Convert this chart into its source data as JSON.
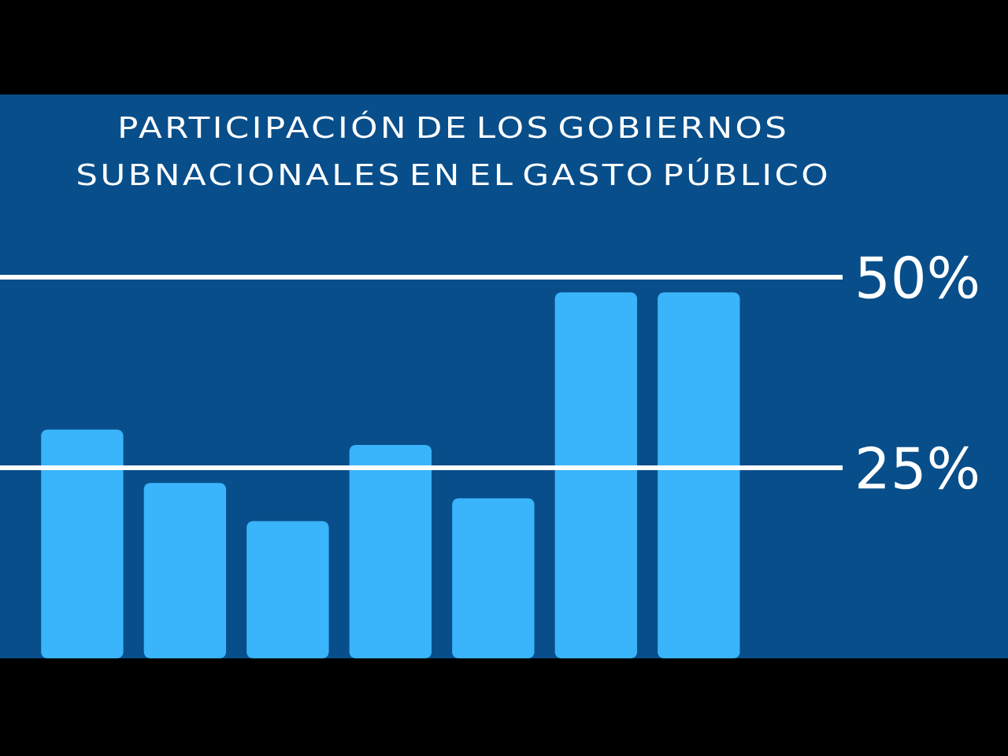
{
  "chart_data": {
    "type": "bar",
    "title": "PARTICIPACIÓN DE LOS GOBIERNOS SUBNACIONALES EN EL GASTO PÚBLICO",
    "categories": [
      null,
      null,
      null,
      null,
      null,
      null,
      null
    ],
    "values": [
      30,
      23,
      18,
      28,
      21,
      48,
      48
    ],
    "color": "#3ab4fa",
    "ylim": [
      0,
      50
    ],
    "yticks": [
      {
        "value": 25,
        "label": "25%"
      },
      {
        "value": 50,
        "label": "50%"
      }
    ],
    "grid": "y"
  }
}
